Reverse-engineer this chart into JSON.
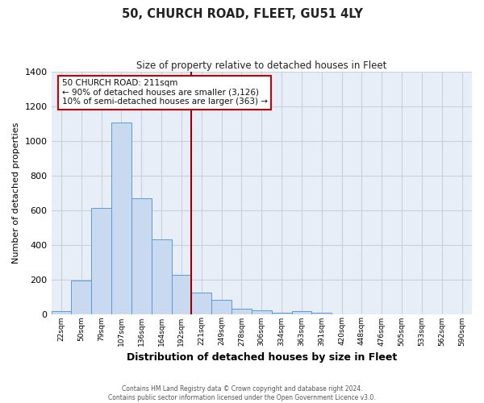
{
  "title": "50, CHURCH ROAD, FLEET, GU51 4LY",
  "subtitle": "Size of property relative to detached houses in Fleet",
  "xlabel": "Distribution of detached houses by size in Fleet",
  "ylabel": "Number of detached properties",
  "bin_labels": [
    "22sqm",
    "50sqm",
    "79sqm",
    "107sqm",
    "136sqm",
    "164sqm",
    "192sqm",
    "221sqm",
    "249sqm",
    "278sqm",
    "306sqm",
    "334sqm",
    "363sqm",
    "391sqm",
    "420sqm",
    "448sqm",
    "476sqm",
    "505sqm",
    "533sqm",
    "562sqm",
    "590sqm"
  ],
  "bar_heights": [
    15,
    195,
    615,
    1105,
    670,
    430,
    225,
    125,
    80,
    30,
    20,
    5,
    18,
    5,
    0,
    0,
    0,
    0,
    0,
    0,
    0
  ],
  "bar_color": "#c9d9f0",
  "bar_edge_color": "#5b9bd5",
  "vline_x": 7,
  "vline_color": "#990000",
  "annotation_title": "50 CHURCH ROAD: 211sqm",
  "annotation_line1": "← 90% of detached houses are smaller (3,126)",
  "annotation_line2": "10% of semi-detached houses are larger (363) →",
  "annotation_box_facecolor": "#ffffff",
  "annotation_box_edgecolor": "#cc0000",
  "ylim": [
    0,
    1400
  ],
  "yticks": [
    0,
    200,
    400,
    600,
    800,
    1000,
    1200,
    1400
  ],
  "plot_bg_color": "#e8eef8",
  "grid_color": "#c8d0e0",
  "footer_line1": "Contains HM Land Registry data © Crown copyright and database right 2024.",
  "footer_line2": "Contains public sector information licensed under the Open Government Licence v3.0."
}
